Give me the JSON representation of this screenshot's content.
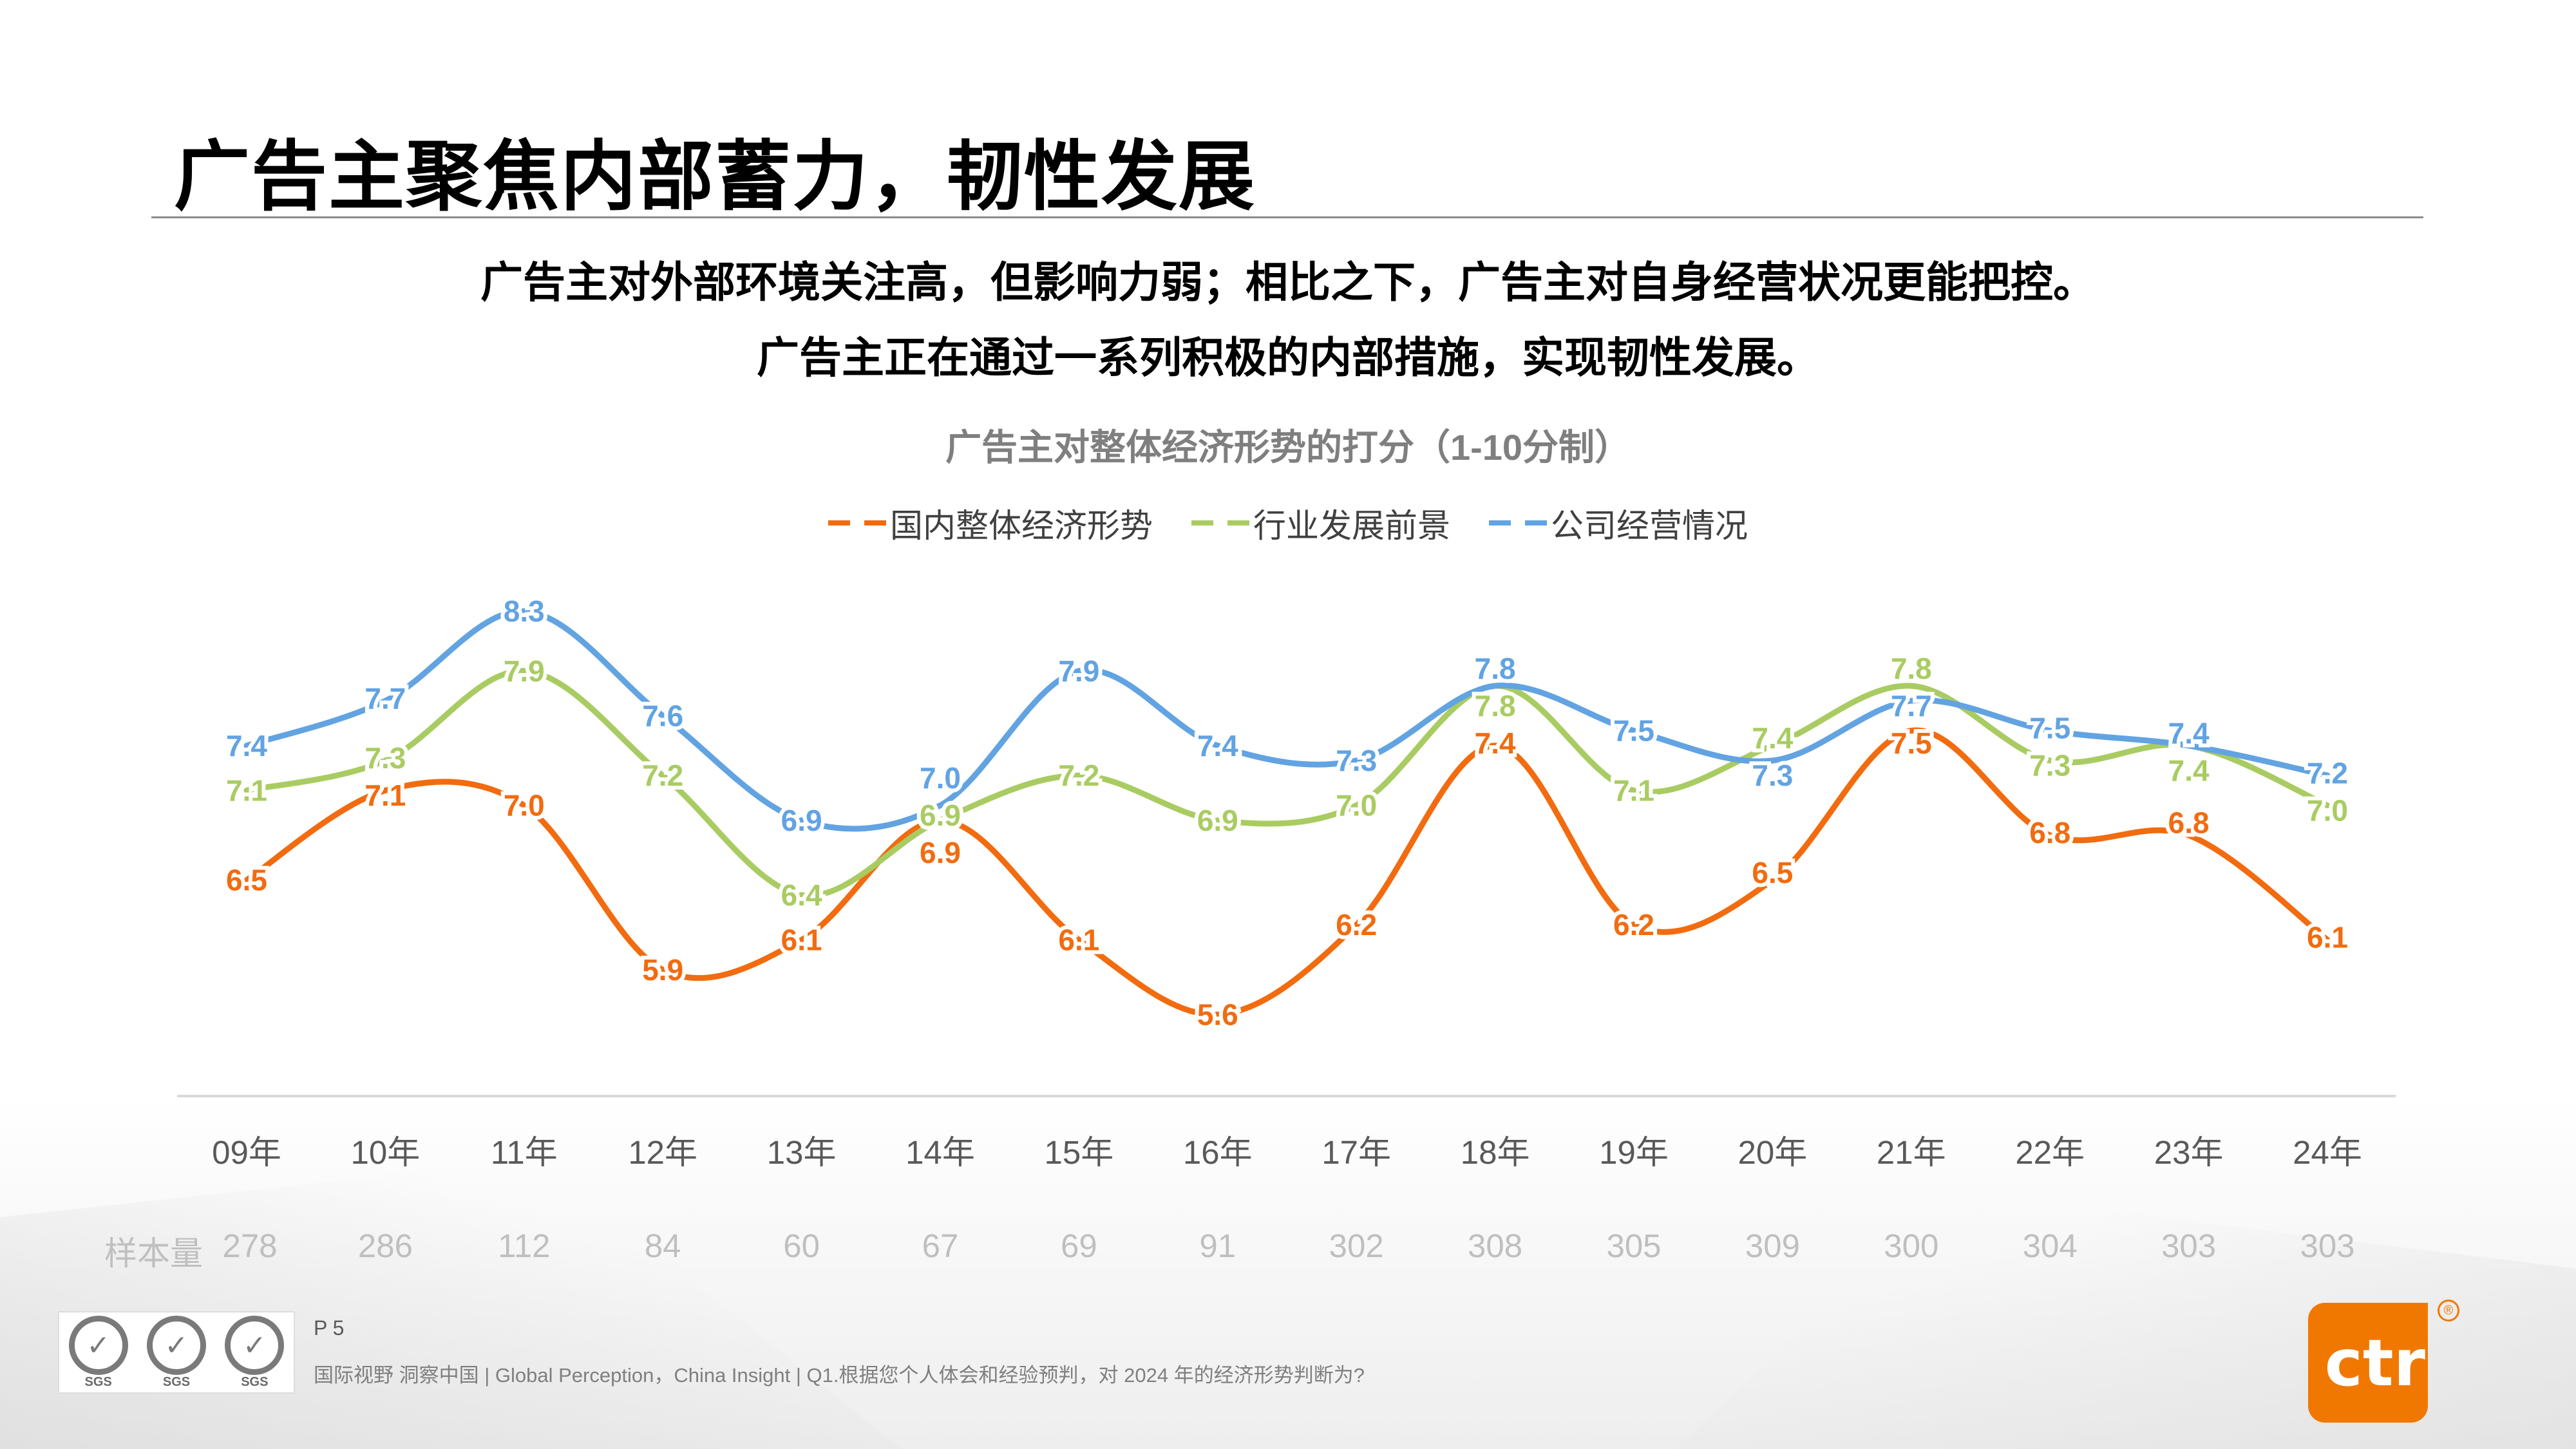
{
  "header": {
    "title": "广告主聚焦内部蓄力，韧性发展",
    "subtitle_line1": "广告主对外部环境关注高，但影响力弱；相比之下，广告主对自身经营状况更能把控。",
    "subtitle_line2": "广告主正在通过一系列积极的内部措施，实现韧性发展。"
  },
  "chart_data": {
    "type": "line",
    "title": "广告主对整体经济形势的打分（1-10分制）",
    "categories": [
      "09年",
      "10年",
      "11年",
      "12年",
      "13年",
      "14年",
      "15年",
      "16年",
      "17年",
      "18年",
      "19年",
      "20年",
      "21年",
      "22年",
      "23年",
      "24年"
    ],
    "series": [
      {
        "name": "国内整体经济形势",
        "color": "#f26b0f",
        "values": [
          6.5,
          7.1,
          7.0,
          5.9,
          6.1,
          6.9,
          6.1,
          5.6,
          6.2,
          7.4,
          6.2,
          6.5,
          7.5,
          6.8,
          6.8,
          6.1
        ]
      },
      {
        "name": "行业发展前景",
        "color": "#a9cc62",
        "values": [
          7.1,
          7.3,
          7.9,
          7.2,
          6.4,
          6.9,
          7.2,
          6.9,
          7.0,
          7.8,
          7.1,
          7.4,
          7.8,
          7.3,
          7.4,
          7.0
        ]
      },
      {
        "name": "公司经营情况",
        "color": "#62a3e2",
        "values": [
          7.4,
          7.7,
          8.3,
          7.6,
          6.9,
          7.0,
          7.9,
          7.4,
          7.3,
          7.8,
          7.5,
          7.3,
          7.7,
          7.5,
          7.4,
          7.2
        ]
      }
    ],
    "smooth": true,
    "data_labels": true,
    "grid": false,
    "legend_position": "top",
    "y_axis_visible": false,
    "sample_label": "样本量",
    "sample_sizes": [
      "278",
      "286",
      "112",
      "84",
      "60",
      "67",
      "69",
      "91",
      "302",
      "308",
      "305",
      "309",
      "300",
      "304",
      "303",
      "303"
    ]
  },
  "footer": {
    "page": "P 5",
    "text": "国际视野  洞察中国 |  Global Perception，China Insight  | Q1.根据您个人体会和经验预判，对 2024 年的经济形势判断为?",
    "badge_text": "SGS",
    "logo_text": "ctr"
  }
}
